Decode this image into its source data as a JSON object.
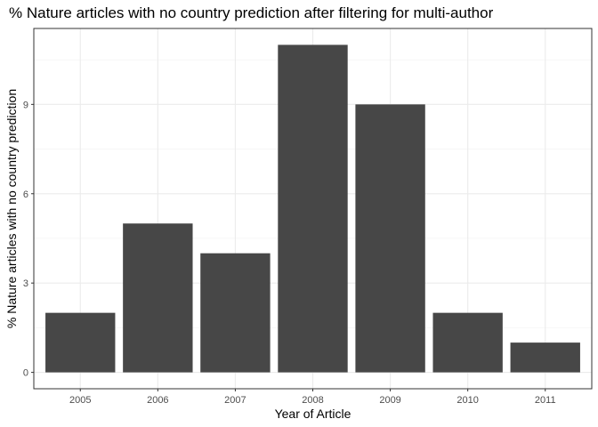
{
  "chart_data": {
    "type": "bar",
    "title": "% Nature articles with no country prediction after filtering for multi-author",
    "xlabel": "Year of Article",
    "ylabel": "% Nature articles with no country prediction",
    "categories": [
      "2005",
      "2006",
      "2007",
      "2008",
      "2009",
      "2010",
      "2011"
    ],
    "values": [
      2,
      5,
      4,
      11,
      9,
      2,
      1
    ],
    "ylim": [
      -0.55,
      11.55
    ],
    "yticks": [
      0,
      3,
      6,
      9
    ],
    "grid": true,
    "theme": "bw",
    "bar_color": "#474747",
    "grid_color": "#ebebeb",
    "panel_border_color": "#333333"
  }
}
